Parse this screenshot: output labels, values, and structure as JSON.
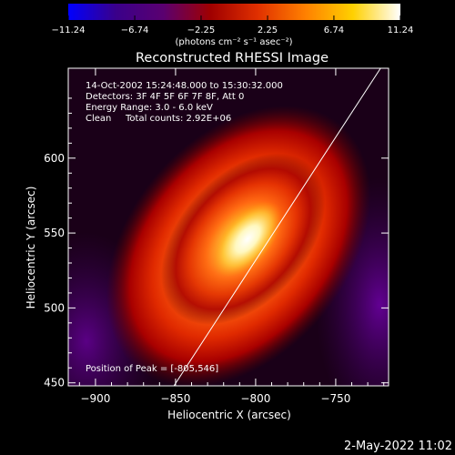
{
  "chart_data": {
    "type": "heatmap",
    "title": "Reconstructed RHESSI Image",
    "xlabel": "Heliocentric X (arcsec)",
    "ylabel": "Heliocentric Y (arcsec)",
    "xlim": [
      -917,
      -717
    ],
    "ylim": [
      448,
      660
    ],
    "xticks": [
      {
        "value": -900,
        "label": "−900"
      },
      {
        "value": -850,
        "label": "−850"
      },
      {
        "value": -800,
        "label": "−800"
      },
      {
        "value": -750,
        "label": "−750"
      }
    ],
    "yticks": [
      {
        "value": 450,
        "label": "450"
      },
      {
        "value": 500,
        "label": "500"
      },
      {
        "value": 550,
        "label": "550"
      },
      {
        "value": 600,
        "label": "600"
      }
    ],
    "colorbar": {
      "min": -11.24,
      "max": 11.24,
      "ticks": [
        {
          "value": -11.24,
          "label": "−11.24"
        },
        {
          "value": -6.74,
          "label": "−6.74"
        },
        {
          "value": -2.25,
          "label": "−2.25"
        },
        {
          "value": 2.25,
          "label": "2.25"
        },
        {
          "value": 6.74,
          "label": "6.74"
        },
        {
          "value": 11.24,
          "label": "11.24"
        }
      ],
      "unit": "(photons cm⁻² s⁻¹ asec⁻²)",
      "colors": [
        "#0000ff",
        "#3a008a",
        "#5a0070",
        "#a00000",
        "#e03000",
        "#ff8000",
        "#ffd000",
        "#ffffff"
      ]
    },
    "annotations": [
      "14-Oct-2002 15:24:48.000 to 15:30:32.000",
      "Detectors: 3F 4F 5F 6F 7F 8F, Att 0",
      "Energy Range: 3.0 - 6.0 keV",
      "Clean",
      "Total counts: 2.92E+06"
    ],
    "peak_label": "Position of Peak = [-805,546]",
    "peak": {
      "x": -805,
      "y": 546
    },
    "limb_line": [
      {
        "x": -851,
        "y": 448
      },
      {
        "x": -722,
        "y": 660
      }
    ],
    "grid": false
  },
  "footer": {
    "timestamp": "2-May-2022 11:02"
  }
}
